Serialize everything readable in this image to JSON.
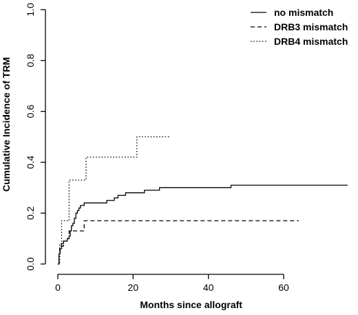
{
  "chart_data": {
    "type": "line",
    "step": true,
    "xlabel": "Months since allograft",
    "ylabel": "Cumulative Incidence of TRM",
    "xlim": [
      0,
      77
    ],
    "ylim": [
      0,
      1
    ],
    "xticks": [
      0,
      20,
      40,
      60
    ],
    "yticks": [
      0.0,
      0.2,
      0.4,
      0.6,
      0.8,
      1.0
    ],
    "ytick_labels": [
      "0.0",
      "0.2",
      "0.4",
      "0.6",
      "0.8",
      "1.0"
    ],
    "legend_position": "top-right",
    "series": [
      {
        "name": "no mismatch",
        "line_style": "solid",
        "x": [
          0,
          0.3,
          0.6,
          1,
          1.5,
          2,
          2.5,
          3,
          3.3,
          3.6,
          4,
          4.4,
          4.8,
          5.2,
          5.6,
          6,
          6.5,
          7,
          8.5,
          10,
          12,
          13,
          14,
          15,
          16,
          18,
          21,
          23,
          27,
          34,
          46,
          77
        ],
        "y": [
          0.0,
          0.04,
          0.06,
          0.08,
          0.09,
          0.09,
          0.1,
          0.11,
          0.13,
          0.15,
          0.16,
          0.18,
          0.2,
          0.21,
          0.22,
          0.23,
          0.23,
          0.24,
          0.24,
          0.24,
          0.24,
          0.25,
          0.25,
          0.26,
          0.27,
          0.28,
          0.28,
          0.29,
          0.3,
          0.3,
          0.31,
          0.31
        ]
      },
      {
        "name": "DRB3 mismatch",
        "line_style": "dashed",
        "x": [
          0,
          0.3,
          0.5,
          1.5,
          2.5,
          3.0,
          5.5,
          7.0,
          64
        ],
        "y": [
          0.0,
          0.04,
          0.07,
          0.09,
          0.1,
          0.13,
          0.13,
          0.17,
          0.17
        ]
      },
      {
        "name": "DRB4 mismatch",
        "line_style": "dotted",
        "x": [
          0,
          0.5,
          1.0,
          3.0,
          7.5,
          21,
          30
        ],
        "y": [
          0.0,
          0.08,
          0.17,
          0.33,
          0.42,
          0.5,
          0.5
        ]
      }
    ]
  }
}
